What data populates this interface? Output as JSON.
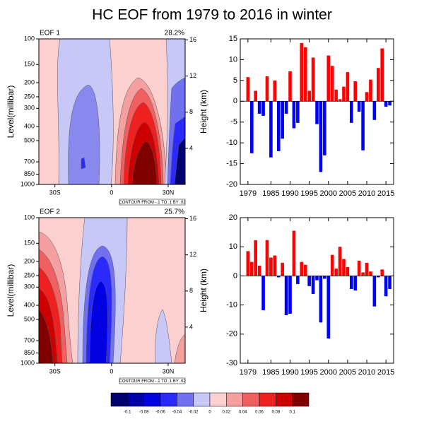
{
  "title": "HC EOF from 1979 to 2016 in winter",
  "chart_data": [
    {
      "type": "contour",
      "label": "EOF 1",
      "variance": "28.2%",
      "ylabel": "Level(millibar)",
      "y2label": "Height (km)",
      "xlim": [
        -38.5,
        39
      ],
      "xticks": [
        {
          "value": -30,
          "label": "30S"
        },
        0,
        {
          "value": 30,
          "label": "30N"
        }
      ],
      "ylim": [
        1000,
        100
      ],
      "ylog": true,
      "yticks": [
        1000,
        850,
        700,
        500,
        400,
        300,
        250,
        200,
        150,
        100
      ],
      "y2ticks": [
        4,
        8,
        12,
        16
      ],
      "note": "CONTOUR FROM -.1 TO .1 BY .02"
    },
    {
      "type": "bar",
      "xlim": [
        1977,
        2017
      ],
      "ylim": [
        -20,
        15
      ],
      "yticks": [
        -20,
        -15,
        -10,
        -5,
        0,
        5,
        10,
        15
      ],
      "xticks": [
        1979,
        1985,
        1990,
        1995,
        2000,
        2005,
        2010,
        2015
      ],
      "color_positive": "#ff0000",
      "color_negative": "#0000ff",
      "x": [
        1979,
        1980,
        1981,
        1982,
        1983,
        1984,
        1985,
        1986,
        1987,
        1988,
        1989,
        1990,
        1991,
        1992,
        1993,
        1994,
        1995,
        1996,
        1997,
        1998,
        1999,
        2000,
        2001,
        2002,
        2003,
        2004,
        2005,
        2006,
        2007,
        2008,
        2009,
        2010,
        2011,
        2012,
        2013,
        2014,
        2015,
        2016
      ],
      "values": [
        5.8,
        -12.5,
        2.5,
        -3,
        -3.5,
        6,
        -13.5,
        5,
        -12,
        -9,
        -3,
        7.2,
        -6.5,
        -5.2,
        14,
        13,
        2.5,
        10.5,
        -5.5,
        -17,
        -13,
        11,
        8.5,
        2.8,
        0.5,
        3.5,
        7,
        -5.2,
        4.8,
        -2.5,
        -11.8,
        2.2,
        5.2,
        -4.5,
        8,
        12.7,
        -1.3,
        -1
      ]
    },
    {
      "type": "contour",
      "label": "EOF 2",
      "variance": "25.7%",
      "ylabel": "Level(millibar)",
      "y2label": "Height (km)",
      "xlim": [
        -38.5,
        39
      ],
      "xticks": [
        {
          "value": -30,
          "label": "30S"
        },
        0,
        {
          "value": 30,
          "label": "30N"
        }
      ],
      "ylim": [
        1000,
        100
      ],
      "ylog": true,
      "yticks": [
        1000,
        850,
        700,
        500,
        400,
        300,
        250,
        200,
        150,
        100
      ],
      "y2ticks": [
        4,
        8,
        12,
        16
      ],
      "note": "CONTOUR FROM -.1 TO .1 BY .02"
    },
    {
      "type": "bar",
      "xlim": [
        1977,
        2017
      ],
      "ylim": [
        -30,
        20
      ],
      "yticks": [
        -30,
        -20,
        -10,
        0,
        10,
        20
      ],
      "xticks": [
        1979,
        1985,
        1990,
        1995,
        2000,
        2005,
        2010,
        2015
      ],
      "color_positive": "#ff0000",
      "color_negative": "#0000ff",
      "x": [
        1979,
        1980,
        1981,
        1982,
        1983,
        1984,
        1985,
        1986,
        1987,
        1988,
        1989,
        1990,
        1991,
        1992,
        1993,
        1994,
        1995,
        1996,
        1997,
        1998,
        1999,
        2000,
        2001,
        2002,
        2003,
        2004,
        2005,
        2006,
        2007,
        2008,
        2009,
        2010,
        2011,
        2012,
        2013,
        2014,
        2015,
        2016
      ],
      "values": [
        8.5,
        4.8,
        12.2,
        3.5,
        -11.8,
        12.3,
        6.3,
        7,
        -0.5,
        4.5,
        -13.5,
        -13,
        15.5,
        -2.8,
        4.8,
        3.8,
        -3.5,
        -6.2,
        -1.5,
        -16,
        -1,
        -21.5,
        7.2,
        2.5,
        10,
        5.8,
        3,
        -4.5,
        -5,
        5.2,
        1.2,
        4.5,
        1.5,
        -10.5,
        -0.5,
        2.2,
        -7,
        -4.5
      ]
    }
  ],
  "colorbar": {
    "levels": [
      -0.1,
      -0.08,
      -0.06,
      -0.04,
      -0.02,
      0,
      0.02,
      0.04,
      0.06,
      0.08,
      0.1
    ],
    "colors": [
      "#00006e",
      "#0000a8",
      "#0000e0",
      "#2a2aff",
      "#7070f0",
      "#c8c8f8",
      "#fcd0d0",
      "#f4a0a0",
      "#f06060",
      "#ee2020",
      "#cc0000",
      "#800000"
    ]
  }
}
